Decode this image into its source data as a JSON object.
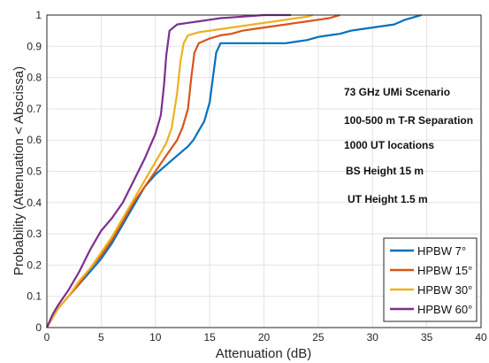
{
  "chart_data": {
    "type": "line",
    "title": "",
    "xlabel": "Attenuation (dB)",
    "ylabel": "Probability (Attenuation < Abscissa)",
    "xlim": [
      0,
      40
    ],
    "ylim": [
      0,
      1
    ],
    "xticks": [
      "0",
      "5",
      "10",
      "15",
      "20",
      "25",
      "30",
      "35",
      "40"
    ],
    "yticks": [
      "0",
      "0.1",
      "0.2",
      "0.3",
      "0.4",
      "0.5",
      "0.6",
      "0.7",
      "0.8",
      "0.9",
      "1"
    ],
    "grid": true,
    "legend_position": "bottom-right",
    "annotations": [
      "73 GHz UMi Scenario",
      "100-500 m T-R Separation",
      "1000 UT locations",
      "BS Height 15 m",
      "UT Height 1.5 m"
    ],
    "series": [
      {
        "name": "HPBW 7°",
        "color": "#0072BD",
        "points": [
          [
            0,
            0
          ],
          [
            0.5,
            0.03
          ],
          [
            1,
            0.06
          ],
          [
            2,
            0.1
          ],
          [
            3,
            0.14
          ],
          [
            4,
            0.18
          ],
          [
            5,
            0.22
          ],
          [
            6,
            0.27
          ],
          [
            7,
            0.33
          ],
          [
            8,
            0.39
          ],
          [
            9,
            0.45
          ],
          [
            10,
            0.49
          ],
          [
            11,
            0.52
          ],
          [
            12,
            0.55
          ],
          [
            13,
            0.58
          ],
          [
            13.5,
            0.6
          ],
          [
            14,
            0.63
          ],
          [
            14.5,
            0.66
          ],
          [
            15,
            0.72
          ],
          [
            15.3,
            0.8
          ],
          [
            15.6,
            0.88
          ],
          [
            16,
            0.91
          ],
          [
            17,
            0.91
          ],
          [
            18,
            0.91
          ],
          [
            19,
            0.91
          ],
          [
            20,
            0.91
          ],
          [
            21,
            0.91
          ],
          [
            22,
            0.91
          ],
          [
            23,
            0.915
          ],
          [
            24,
            0.92
          ],
          [
            25,
            0.93
          ],
          [
            26,
            0.935
          ],
          [
            27,
            0.94
          ],
          [
            28,
            0.95
          ],
          [
            29,
            0.955
          ],
          [
            30,
            0.96
          ],
          [
            31,
            0.965
          ],
          [
            32,
            0.97
          ],
          [
            33,
            0.985
          ],
          [
            34,
            0.995
          ],
          [
            34.5,
            1.0
          ]
        ]
      },
      {
        "name": "HPBW 15°",
        "color": "#D95319",
        "points": [
          [
            0,
            0
          ],
          [
            0.5,
            0.03
          ],
          [
            1,
            0.06
          ],
          [
            2,
            0.1
          ],
          [
            3,
            0.14
          ],
          [
            4,
            0.19
          ],
          [
            5,
            0.23
          ],
          [
            6,
            0.28
          ],
          [
            7,
            0.34
          ],
          [
            8,
            0.4
          ],
          [
            9,
            0.45
          ],
          [
            10,
            0.5
          ],
          [
            11,
            0.55
          ],
          [
            12,
            0.6
          ],
          [
            12.5,
            0.64
          ],
          [
            13,
            0.7
          ],
          [
            13.3,
            0.8
          ],
          [
            13.6,
            0.88
          ],
          [
            14,
            0.91
          ],
          [
            15,
            0.925
          ],
          [
            16,
            0.935
          ],
          [
            17,
            0.94
          ],
          [
            18,
            0.95
          ],
          [
            19,
            0.955
          ],
          [
            20,
            0.96
          ],
          [
            21,
            0.965
          ],
          [
            22,
            0.97
          ],
          [
            23,
            0.975
          ],
          [
            24,
            0.98
          ],
          [
            25,
            0.985
          ],
          [
            26,
            0.99
          ],
          [
            26.5,
            0.995
          ],
          [
            27,
            1.0
          ]
        ]
      },
      {
        "name": "HPBW 30°",
        "color": "#EDB120",
        "points": [
          [
            0,
            0
          ],
          [
            0.5,
            0.03
          ],
          [
            1,
            0.06
          ],
          [
            2,
            0.1
          ],
          [
            3,
            0.15
          ],
          [
            4,
            0.19
          ],
          [
            5,
            0.24
          ],
          [
            6,
            0.29
          ],
          [
            7,
            0.35
          ],
          [
            8,
            0.41
          ],
          [
            9,
            0.47
          ],
          [
            10,
            0.53
          ],
          [
            11,
            0.59
          ],
          [
            11.5,
            0.64
          ],
          [
            12,
            0.75
          ],
          [
            12.3,
            0.85
          ],
          [
            12.6,
            0.91
          ],
          [
            13,
            0.935
          ],
          [
            14,
            0.945
          ],
          [
            15,
            0.95
          ],
          [
            16,
            0.955
          ],
          [
            17,
            0.96
          ],
          [
            18,
            0.965
          ],
          [
            19,
            0.97
          ],
          [
            20,
            0.975
          ],
          [
            21,
            0.98
          ],
          [
            22,
            0.985
          ],
          [
            23,
            0.99
          ],
          [
            24,
            0.995
          ],
          [
            24.5,
            1.0
          ]
        ]
      },
      {
        "name": "HPBW 60°",
        "color": "#7E2F8E",
        "points": [
          [
            0,
            0
          ],
          [
            0.5,
            0.04
          ],
          [
            1,
            0.07
          ],
          [
            2,
            0.12
          ],
          [
            3,
            0.18
          ],
          [
            4,
            0.25
          ],
          [
            5,
            0.31
          ],
          [
            6,
            0.35
          ],
          [
            7,
            0.4
          ],
          [
            8,
            0.47
          ],
          [
            9,
            0.54
          ],
          [
            10,
            0.62
          ],
          [
            10.5,
            0.68
          ],
          [
            10.8,
            0.78
          ],
          [
            11,
            0.87
          ],
          [
            11.3,
            0.95
          ],
          [
            12,
            0.97
          ],
          [
            13,
            0.975
          ],
          [
            14,
            0.98
          ],
          [
            15,
            0.985
          ],
          [
            16,
            0.99
          ],
          [
            18,
            0.995
          ],
          [
            20,
            1.0
          ],
          [
            22.5,
            1.0
          ]
        ]
      }
    ]
  }
}
